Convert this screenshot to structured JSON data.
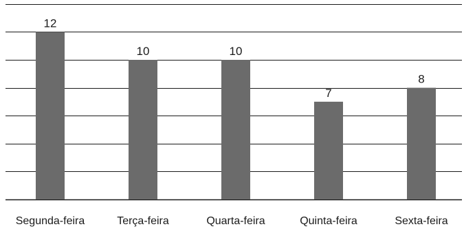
{
  "chart_data": {
    "type": "bar",
    "title": "",
    "xlabel": "",
    "ylabel": "",
    "categories": [
      "Segunda-feira",
      "Terça-feira",
      "Quarta-feira",
      "Quinta-feira",
      "Sexta-feira"
    ],
    "values": [
      12,
      10,
      10,
      7,
      8
    ],
    "ylim": [
      0,
      14
    ],
    "grid": true,
    "y_ticks_shown": false,
    "data_labels": true,
    "bar_color": "#6b6b6b",
    "grid_color": "#1a1a1a"
  }
}
